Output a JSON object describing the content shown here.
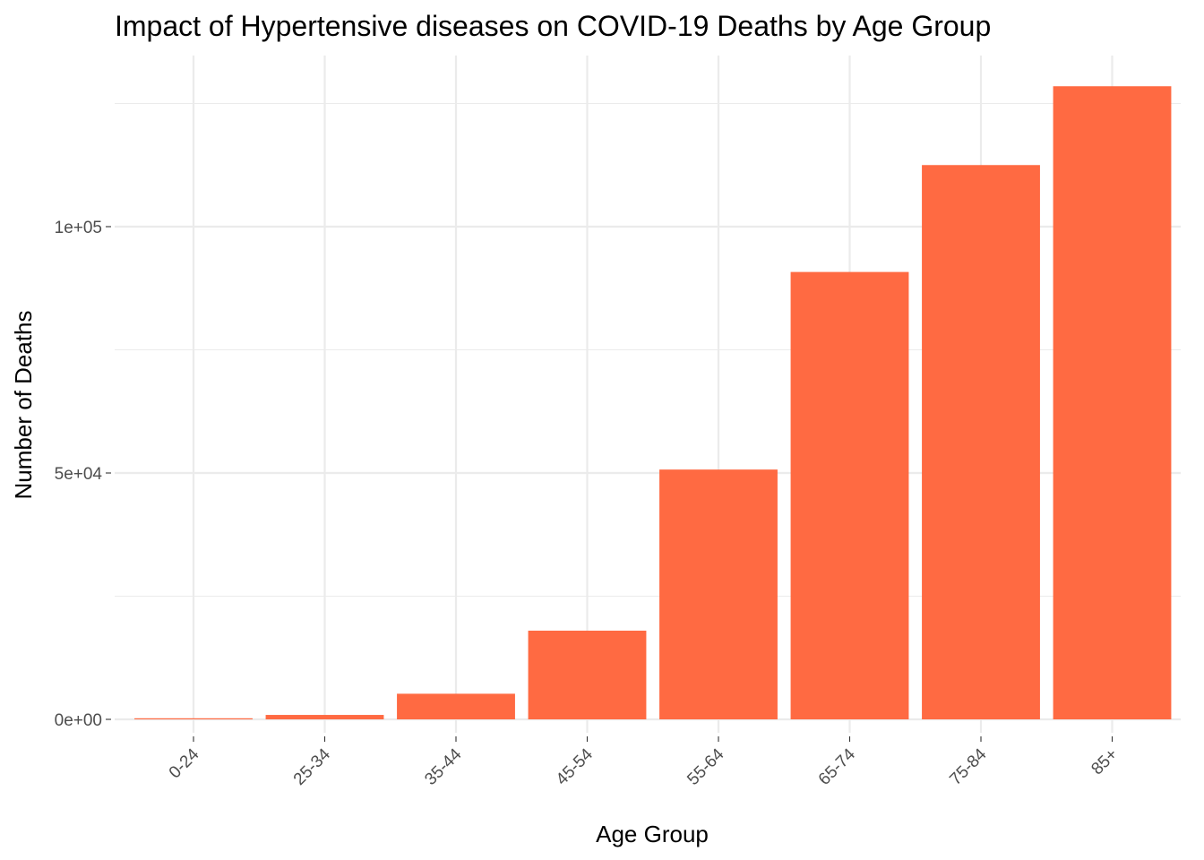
{
  "chart_data": {
    "type": "bar",
    "title": "Impact of Hypertensive diseases on COVID-19 Deaths by Age Group",
    "xlabel": "Age Group",
    "ylabel": "Number of Deaths",
    "categories": [
      "0-24",
      "25-34",
      "35-44",
      "45-54",
      "55-64",
      "65-74",
      "75-84",
      "85+"
    ],
    "values": [
      200,
      900,
      5200,
      18000,
      50700,
      90800,
      112500,
      128500
    ],
    "ylim": [
      0,
      128500
    ],
    "yticks": [
      {
        "value": 0,
        "label": "0e+00"
      },
      {
        "value": 50000,
        "label": "5e+04"
      },
      {
        "value": 100000,
        "label": "1e+05"
      }
    ],
    "y_minor_ticks": [
      25000,
      75000,
      125000
    ],
    "bar_color": "#ff6a42",
    "grid": true,
    "legend": "none"
  }
}
